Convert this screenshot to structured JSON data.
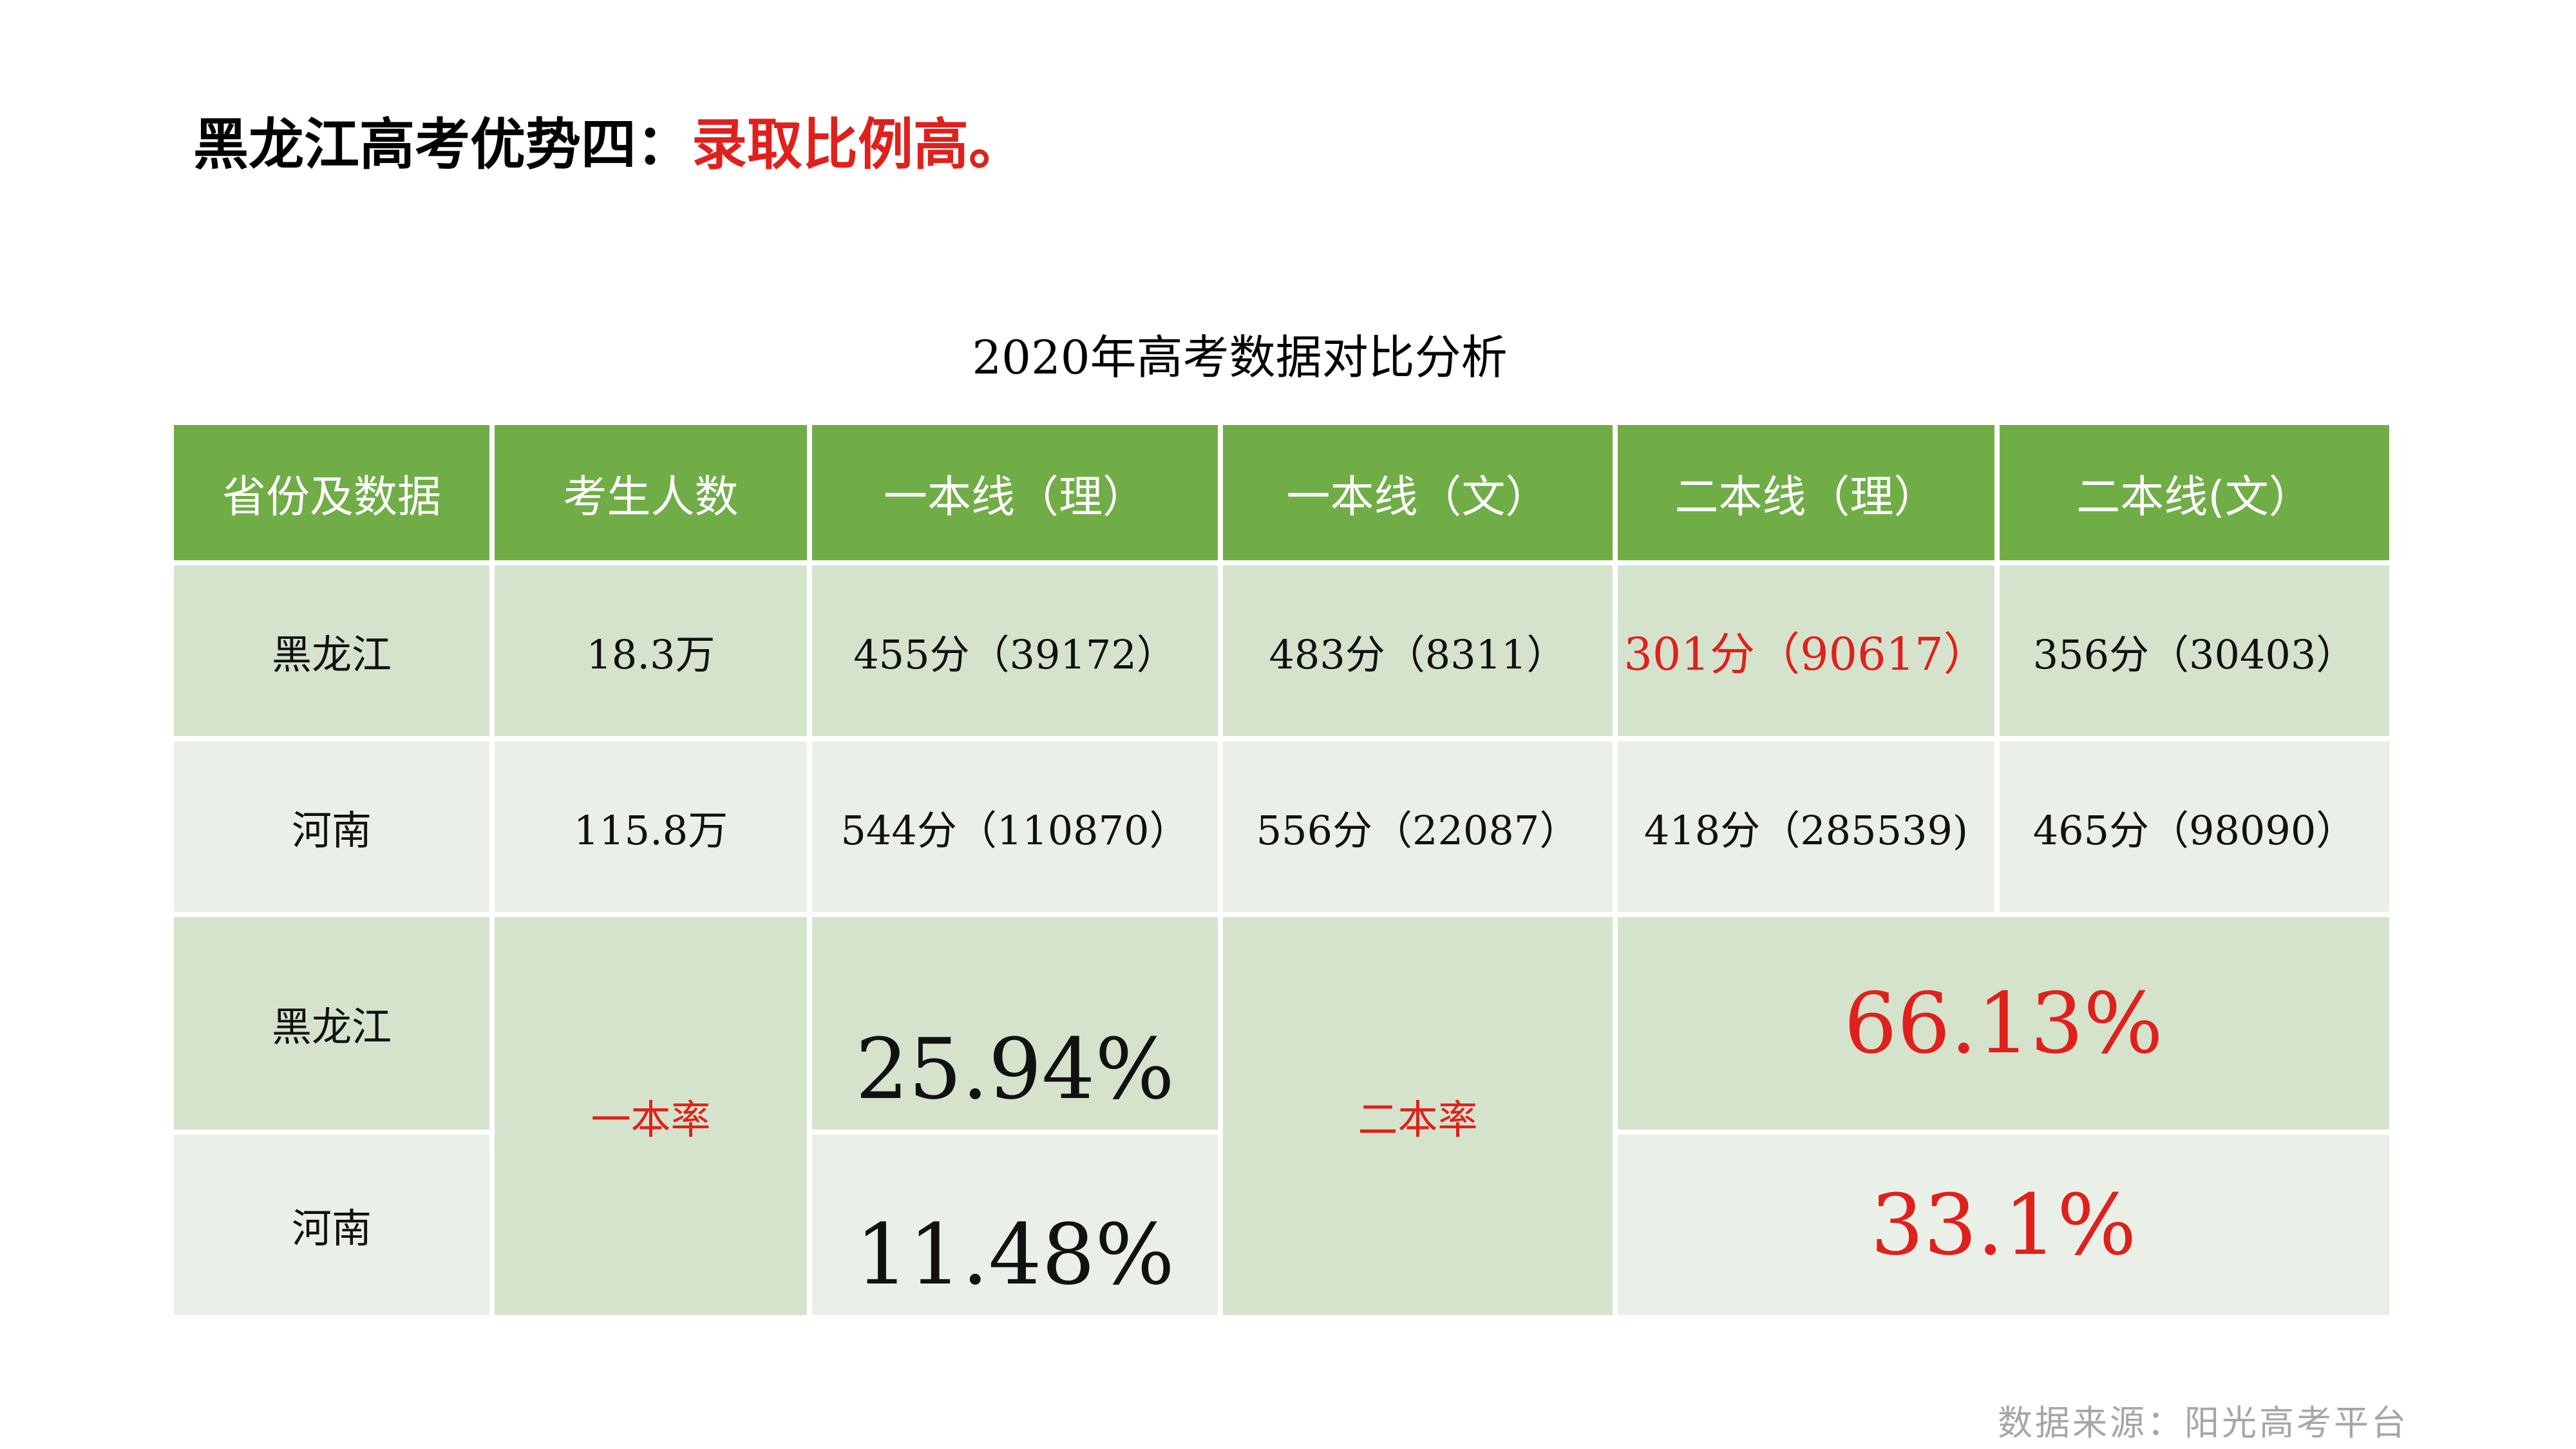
{
  "headline": {
    "prefix": "黑龙江高考优势四：",
    "highlight": "录取比例高。"
  },
  "table_title": "2020年高考数据对比分析",
  "table": {
    "headers": [
      "省份及数据",
      "考生人数",
      "一本线（理）",
      "一本线（文）",
      "二本线（理）",
      "二本线(文）"
    ],
    "rows": [
      [
        "黑龙江",
        "18.3万",
        "455分（39172）",
        "483分（8311）",
        "301分（90617）",
        "356分（30403）"
      ],
      [
        "河南",
        "115.8万",
        "544分（110870）",
        "556分（22087）",
        "418分（285539)",
        "465分（98090）"
      ]
    ],
    "rates": {
      "provinces": [
        "黑龙江",
        "河南"
      ],
      "first_tier_label": "一本率",
      "first_tier_values": [
        "25.94%",
        "11.48%"
      ],
      "second_tier_label": "二本率",
      "second_tier_values": [
        "66.13%",
        "33.1%"
      ]
    }
  },
  "footer": "数据来源：阳光高考平台",
  "colors": {
    "header_bg": "#70ad47",
    "row_dark": "#d5e3cd",
    "row_light": "#eaf0e7",
    "highlight_red": "#e0201c",
    "footer_gray": "#a6a6a6"
  }
}
